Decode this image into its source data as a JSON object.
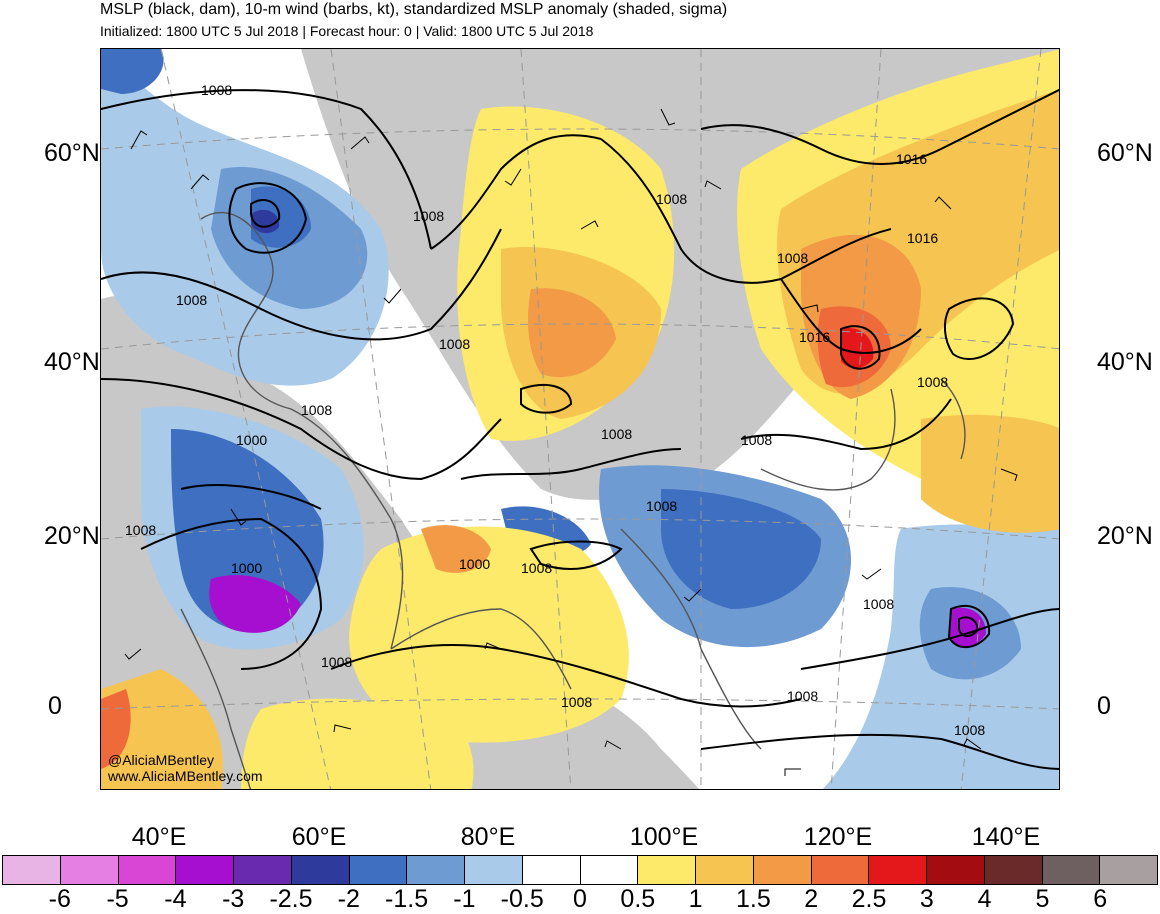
{
  "title": {
    "line1": "MSLP (black, dam), 10-m wind (barbs, kt), standardized MSLP anomaly (shaded, sigma)",
    "line2": "Initialized: 1800 UTC 5 Jul 2018 | Forecast hour: 0 | Valid: 1800 UTC 5 Jul 2018"
  },
  "axes": {
    "lat_labels": [
      "60°N",
      "40°N",
      "20°N",
      "0"
    ],
    "lon_labels": [
      "40°E",
      "60°E",
      "80°E",
      "100°E",
      "120°E",
      "140°E"
    ]
  },
  "isobar_labels": [
    "1008",
    "1008",
    "1008",
    "1008",
    "1008",
    "1016",
    "1016",
    "1008",
    "1008",
    "1016",
    "1000",
    "1008",
    "1008",
    "1008",
    "1008",
    "1000",
    "1008",
    "1000",
    "1008",
    "1008",
    "1008",
    "1008",
    "1008",
    "1008"
  ],
  "credit": {
    "line1": "@AliciaMBentley",
    "line2": "www.AliciaMBentley.com"
  },
  "colorbar": {
    "colors": [
      "#e8b4e6",
      "#e67fe3",
      "#d946d6",
      "#a60fd0",
      "#6a2ab0",
      "#2e3b9c",
      "#3f6fc0",
      "#6f9bd3",
      "#a9cae8",
      "#ffffff",
      "#ffffff",
      "#fde96a",
      "#f5c451",
      "#f29a46",
      "#ee6a3a",
      "#e4171b",
      "#a30d11",
      "#6b2a2a",
      "#6e6060",
      "#a8a0a0"
    ],
    "tick_labels": [
      "-6",
      "-5",
      "-4",
      "-3",
      "-2.5",
      "-2",
      "-1.5",
      "-1",
      "-0.5",
      "0",
      "0.5",
      "1",
      "1.5",
      "2",
      "2.5",
      "3",
      "4",
      "5",
      "6"
    ]
  },
  "legend_colors": {
    "land_gray": "#c8c8c8",
    "isobar": "#000000",
    "coast": "#555555"
  }
}
